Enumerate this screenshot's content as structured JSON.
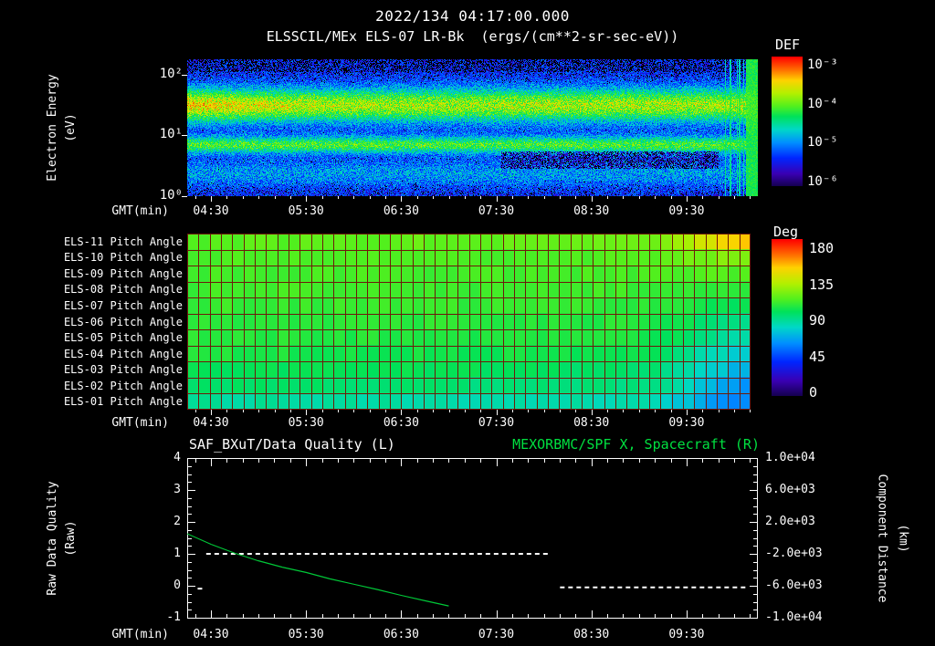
{
  "header": {
    "title": "2022/134 04:17:00.000",
    "subtitle": "ELSSCIL/MEx ELS-07 LR-Bk  (ergs/(cm**2-sr-sec-eV))"
  },
  "time_axis": {
    "label": "GMT(min)",
    "tick_labels": [
      "04:30",
      "05:30",
      "06:30",
      "07:30",
      "08:30",
      "09:30"
    ],
    "tick_hours": [
      4.5,
      5.5,
      6.5,
      7.5,
      8.5,
      9.5
    ],
    "domain_hours": [
      4.25,
      10.25
    ]
  },
  "colors": {
    "background": "#000000",
    "text": "#ffffff",
    "green_accent": "#00e040",
    "curve_green": "#00c838",
    "grid_maroon": "#6e1a0a"
  },
  "chart_data": [
    {
      "type": "heatmap",
      "name": "electron-energy-spectrogram",
      "title": "ELSSCIL/MEx ELS-07 LR-Bk",
      "units_label": "(ergs/(cm**2-sr-sec-eV))",
      "ylabel": [
        "Electron Energy",
        "(eV)"
      ],
      "y_scale": "log",
      "y_range_eV": [
        1,
        178
      ],
      "ytick_labels": [
        "10²",
        "10¹",
        "10⁰"
      ],
      "ytick_logE": [
        2,
        1,
        0
      ],
      "colorbar": {
        "label": "DEF",
        "tick_labels": [
          "10⁻³",
          "10⁻⁴",
          "10⁻⁵",
          "10⁻⁶"
        ],
        "range_log10_flux": [
          -6,
          -3
        ]
      },
      "features": {
        "main_band": {
          "center_log10_eV": 1.5,
          "sigma": 0.2,
          "amplitude": 0.5,
          "left_boost": 0.1,
          "note": "bright green-yellow band ~20-60 eV across full range, brightest before ~05:45"
        },
        "secondary_band": {
          "center_log10_eV": 0.85,
          "sigma": 0.1,
          "amplitude": 0.4,
          "note": "green band ~6-8 eV"
        },
        "low_band": {
          "center_log10_eV": 0.38,
          "sigma": 0.16,
          "amplitude": 0.16
        },
        "dropout_zone": {
          "t_frac": [
            0.55,
            0.93
          ],
          "logE": [
            0.45,
            0.75
          ],
          "note": "dark patches below secondary band 07:30-09:45"
        },
        "streak_zone": {
          "start_frac": 0.94,
          "end_frac": 0.978,
          "note": "vertical green streaks near 10:00"
        },
        "right_edge_fill": {
          "start_frac": 0.978,
          "level": 0.56,
          "note": "solid green column at far right edge"
        }
      },
      "colormap": [
        {
          "p": 0.0,
          "c": "#14004d"
        },
        {
          "p": 0.1,
          "c": "#3a00b4"
        },
        {
          "p": 0.22,
          "c": "#0026ff"
        },
        {
          "p": 0.34,
          "c": "#0090ff"
        },
        {
          "p": 0.44,
          "c": "#00d8c8"
        },
        {
          "p": 0.54,
          "c": "#00e25a"
        },
        {
          "p": 0.62,
          "c": "#52f01e"
        },
        {
          "p": 0.72,
          "c": "#b4f000"
        },
        {
          "p": 0.82,
          "c": "#ffd200"
        },
        {
          "p": 0.9,
          "c": "#ff7000"
        },
        {
          "p": 1.0,
          "c": "#ff0000"
        }
      ]
    },
    {
      "type": "heatmap",
      "name": "pitch-angle-panels",
      "colorbar": {
        "label": "Deg",
        "tick_labels": [
          "180",
          "135",
          "90",
          "45",
          "0"
        ],
        "range_deg": [
          0,
          180
        ]
      },
      "rows": [
        {
          "label": "ELS-11 Pitch Angle",
          "start_deg": 112,
          "end_deg": 148
        },
        {
          "label": "ELS-10 Pitch Angle",
          "start_deg": 110,
          "end_deg": 122
        },
        {
          "label": "ELS-09 Pitch Angle",
          "start_deg": 109,
          "end_deg": 112
        },
        {
          "label": "ELS-08 Pitch Angle",
          "start_deg": 108,
          "end_deg": 104
        },
        {
          "label": "ELS-07 Pitch Angle",
          "start_deg": 107,
          "end_deg": 97
        },
        {
          "label": "ELS-06 Pitch Angle",
          "start_deg": 105,
          "end_deg": 90
        },
        {
          "label": "ELS-05 Pitch Angle",
          "start_deg": 104,
          "end_deg": 83
        },
        {
          "label": "ELS-04 Pitch Angle",
          "start_deg": 102,
          "end_deg": 76
        },
        {
          "label": "ELS-03 Pitch Angle",
          "start_deg": 99,
          "end_deg": 70
        },
        {
          "label": "ELS-02 Pitch Angle",
          "start_deg": 95,
          "end_deg": 64
        },
        {
          "label": "ELS-01 Pitch Angle",
          "start_deg": 87,
          "end_deg": 58
        }
      ],
      "transition_start_frac": 0.8,
      "n_cols": 50,
      "grid_color": "#6e1a0a"
    },
    {
      "type": "line",
      "name": "quality-distance-plot",
      "left_title": "SAF_BXuT/Data Quality (L)",
      "right_title": "MEXORBMC/SPF X, Spacecraft (R)",
      "left_axis": {
        "label": [
          "Raw Data Quality",
          "(Raw)"
        ],
        "range": [
          -1,
          4
        ],
        "tick_labels": [
          "4",
          "3",
          "2",
          "1",
          "0",
          "-1"
        ],
        "tick_values": [
          4,
          3,
          2,
          1,
          0,
          -1
        ]
      },
      "right_axis": {
        "label": [
          "Component Distance",
          "(km)"
        ],
        "range": [
          -10000,
          10000
        ],
        "tick_labels": [
          "1.0e+04",
          "6.0e+03",
          "2.0e+03",
          "-2.0e+03",
          "-6.0e+03",
          "-1.0e+04"
        ]
      },
      "series": [
        {
          "name": "data_quality",
          "color": "#ffffff",
          "style": "dashed",
          "segments": [
            {
              "y": 1.0,
              "t": [
                4.45,
                8.07
              ]
            },
            {
              "y": -0.05,
              "t": [
                8.17,
                10.13
              ]
            },
            {
              "y": -0.09,
              "t": [
                4.36,
                4.44
              ]
            }
          ]
        },
        {
          "name": "spacecraft_x_distance",
          "color": "#00c838",
          "style": "solid",
          "t": [
            4.25,
            4.5,
            4.75,
            5.0,
            5.25,
            5.5,
            5.75,
            6.0,
            6.25,
            6.5,
            6.75,
            7.0
          ],
          "y": [
            1.63,
            1.3,
            1.02,
            0.78,
            0.58,
            0.42,
            0.22,
            0.05,
            -0.12,
            -0.3,
            -0.47,
            -0.63
          ]
        }
      ]
    }
  ]
}
